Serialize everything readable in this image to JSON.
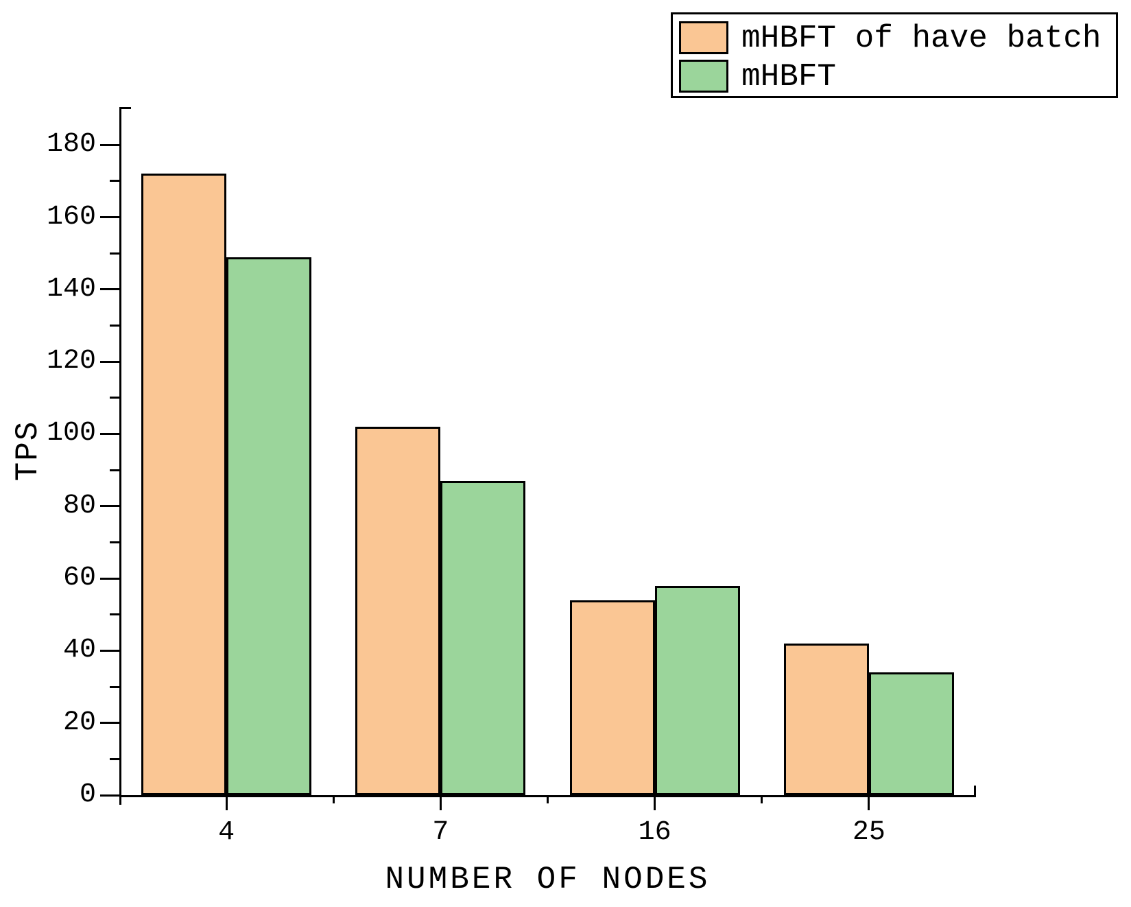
{
  "chart_data": {
    "type": "bar",
    "title": "",
    "xlabel": "NUMBER OF NODES",
    "ylabel": "TPS",
    "categories": [
      "4",
      "7",
      "16",
      "25"
    ],
    "series": [
      {
        "name": "mHBFT of have batch",
        "color": "#FAC694",
        "values": [
          172,
          102,
          54,
          42
        ]
      },
      {
        "name": "mHBFT",
        "color": "#9BD59B",
        "values": [
          149,
          87,
          58,
          34
        ]
      }
    ],
    "ylim": [
      0,
      190
    ],
    "y_major_ticks": [
      0,
      20,
      40,
      60,
      80,
      100,
      120,
      140,
      160,
      180
    ],
    "y_minor_tick_start": 10,
    "y_minor_tick_step": 20,
    "y_minor_tick_end": 170,
    "bar_edge_color": "#000000",
    "axis_color": "#000000",
    "grid": false,
    "legend_position": "top-right"
  }
}
